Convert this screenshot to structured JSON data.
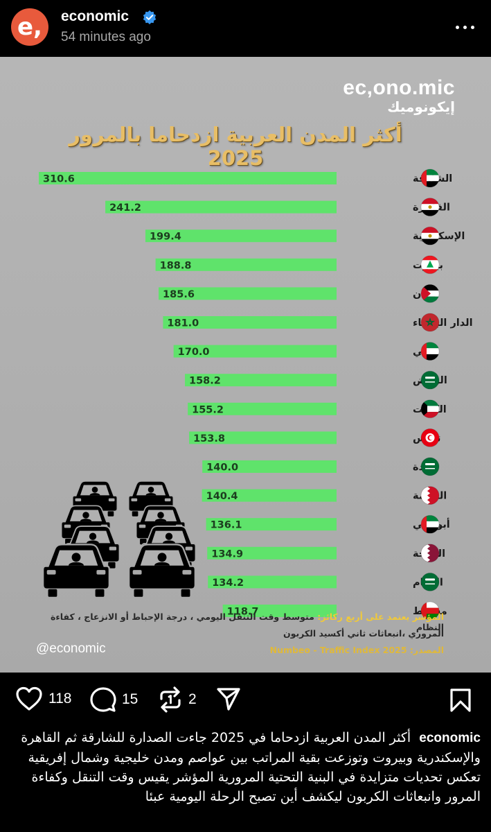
{
  "post": {
    "username": "economic",
    "avatar_letter": "e,",
    "time_ago": "54 minutes ago"
  },
  "infographic": {
    "brand_en": "ec,ono.mic",
    "brand_ar": "إيكونوميك",
    "title": "أكثر المدن العربية ازدحاما بالمرور 2025",
    "note_label": "المؤشر يعتمد على أربع ركائز:",
    "note_rest": "متوسط وقت التنقل اليومي ، درجة الإحباط أو الانزعاج ، كفاءة النظام",
    "note_line2": "المروري ،انبعاثات ثاني أكسيد الكربون",
    "source": "المصدر: Numbeo - Traffic Index 2025",
    "handle": "@economic"
  },
  "chart_data": {
    "type": "bar",
    "title": "أكثر المدن العربية ازدحاما بالمرور 2025",
    "orientation": "horizontal",
    "categories": [
      "الشارقة",
      "القاهرة",
      "الإسكندرية",
      "بيروت",
      "عمّان",
      "الدار البيضاء",
      "دبي",
      "الرياض",
      "الكويت",
      "تونس",
      "جدة",
      "المنامة",
      "أبوظبي",
      "الدوحة",
      "الدمام",
      "مسقط"
    ],
    "values": [
      310.6,
      241.2,
      199.4,
      188.8,
      185.6,
      181.0,
      170.0,
      158.2,
      155.2,
      153.8,
      140.0,
      140.4,
      136.1,
      134.9,
      134.2,
      118.7
    ],
    "labels": [
      "310.6",
      "241.2",
      "199.4",
      "188.8",
      "185.6",
      "181.0",
      "170.0",
      "158.2",
      "155.2",
      "153.8",
      "140.0",
      "140.4",
      "136.1",
      "134.9",
      "134.2",
      "118.7"
    ],
    "bar_color": "#5fe36b"
  },
  "flags": [
    "uae",
    "egypt",
    "egypt",
    "lebanon",
    "jordan",
    "morocco",
    "uae",
    "saudi",
    "kuwait",
    "tunisia",
    "saudi",
    "bahrain",
    "uae",
    "qatar",
    "saudi",
    "oman"
  ],
  "actions": {
    "likes": "118",
    "comments": "15",
    "reposts": "2"
  },
  "caption": {
    "username": "economic",
    "text": "أكثر المدن العربية ازدحاما في 2025 جاءت الصدارة للشارقة ثم القاهرة والإسكندرية وبيروت وتوزعت بقية المراتب بين عواصم ومدن خليجية وشمال إفريقية تعكس تحديات متزايدة في البنية التحتية المرورية المؤشر يقيس وقت التنقل وكفاءة المرور وانبعاثات الكربون ليكشف أين تصبح الرحلة اليومية عبئا"
  },
  "colors": {
    "accent_orange": "#e85a3c",
    "title_gold": "#e8be66",
    "bar_green": "#5fe36b",
    "verified_blue": "#3897f0"
  }
}
